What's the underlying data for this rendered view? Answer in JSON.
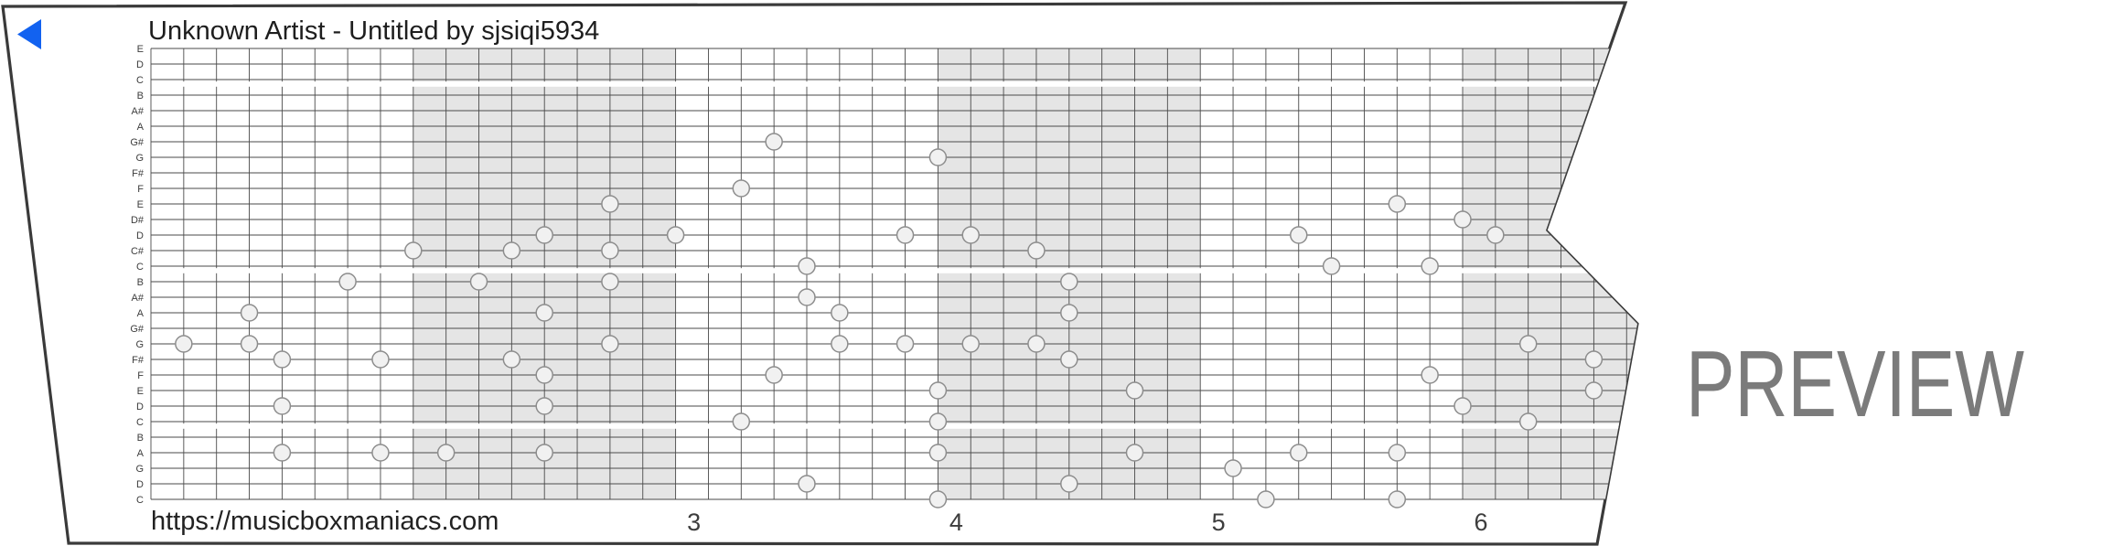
{
  "title": "Unknown Artist - Untitled by sjsiqi5934",
  "watermark": "PREVIEW",
  "footer": {
    "url": "https://musicboxmaniacs.com"
  },
  "play_button": {
    "color": "#1262f0"
  },
  "colors": {
    "strip_border": "#3a3a3a",
    "grid_line": "#4a4a4a",
    "measure_shading": "#e5e5e5",
    "octave_gap": "#ffffff",
    "note_fill": "#f1f1f1",
    "note_border": "#8d8d8d",
    "text": "#1e1e1e",
    "watermark": "#7b7b7b"
  },
  "strip": {
    "rows": 30,
    "note_labels": [
      "E",
      "D",
      "C",
      "B",
      "A#",
      "A",
      "G#",
      "G",
      "F#",
      "F",
      "E",
      "D#",
      "D",
      "C#",
      "C",
      "B",
      "A#",
      "A",
      "G#",
      "G",
      "F#",
      "F",
      "E",
      "D",
      "C",
      "B",
      "A",
      "G",
      "D",
      "C"
    ],
    "octave_gap_after_rows": [
      2,
      14,
      24
    ],
    "shaded_measures": [
      2,
      4,
      6
    ],
    "measure_numbers": [
      "3",
      "4",
      "5",
      "6"
    ],
    "notes": [
      {
        "col": 1,
        "row": 19,
        "pitch": "G"
      },
      {
        "col": 3,
        "row": 17,
        "pitch": "A"
      },
      {
        "col": 3,
        "row": 19,
        "pitch": "G"
      },
      {
        "col": 4,
        "row": 20,
        "pitch": "F#"
      },
      {
        "col": 4,
        "row": 23,
        "pitch": "D"
      },
      {
        "col": 4,
        "row": 26,
        "pitch": "A"
      },
      {
        "col": 6,
        "row": 15,
        "pitch": "B"
      },
      {
        "col": 7,
        "row": 20,
        "pitch": "F#"
      },
      {
        "col": 7,
        "row": 26,
        "pitch": "A"
      },
      {
        "col": 8,
        "row": 13,
        "pitch": "C#"
      },
      {
        "col": 9,
        "row": 26,
        "pitch": "A"
      },
      {
        "col": 10,
        "row": 15,
        "pitch": "B"
      },
      {
        "col": 11,
        "row": 13,
        "pitch": "C#"
      },
      {
        "col": 11,
        "row": 20,
        "pitch": "F#"
      },
      {
        "col": 12,
        "row": 12,
        "pitch": "D"
      },
      {
        "col": 12,
        "row": 17,
        "pitch": "A"
      },
      {
        "col": 12,
        "row": 21,
        "pitch": "F"
      },
      {
        "col": 12,
        "row": 23,
        "pitch": "D"
      },
      {
        "col": 12,
        "row": 26,
        "pitch": "A"
      },
      {
        "col": 14,
        "row": 10,
        "pitch": "E"
      },
      {
        "col": 14,
        "row": 13,
        "pitch": "C#"
      },
      {
        "col": 14,
        "row": 15,
        "pitch": "B"
      },
      {
        "col": 14,
        "row": 19,
        "pitch": "G"
      },
      {
        "col": 16,
        "row": 12,
        "pitch": "D"
      },
      {
        "col": 18,
        "row": 9,
        "pitch": "F"
      },
      {
        "col": 18,
        "row": 24,
        "pitch": "C"
      },
      {
        "col": 19,
        "row": 6,
        "pitch": "G#"
      },
      {
        "col": 19,
        "row": 21,
        "pitch": "F"
      },
      {
        "col": 20,
        "row": 14,
        "pitch": "C"
      },
      {
        "col": 20,
        "row": 16,
        "pitch": "A#"
      },
      {
        "col": 20,
        "row": 28,
        "pitch": "D"
      },
      {
        "col": 21,
        "row": 17,
        "pitch": "A"
      },
      {
        "col": 21,
        "row": 19,
        "pitch": "G"
      },
      {
        "col": 23,
        "row": 12,
        "pitch": "D"
      },
      {
        "col": 23,
        "row": 19,
        "pitch": "G"
      },
      {
        "col": 24,
        "row": 7,
        "pitch": "G"
      },
      {
        "col": 24,
        "row": 22,
        "pitch": "E"
      },
      {
        "col": 24,
        "row": 24,
        "pitch": "C"
      },
      {
        "col": 24,
        "row": 26,
        "pitch": "A"
      },
      {
        "col": 24,
        "row": 29,
        "pitch": "C"
      },
      {
        "col": 25,
        "row": 12,
        "pitch": "D"
      },
      {
        "col": 25,
        "row": 19,
        "pitch": "G"
      },
      {
        "col": 27,
        "row": 13,
        "pitch": "C#"
      },
      {
        "col": 27,
        "row": 19,
        "pitch": "G"
      },
      {
        "col": 28,
        "row": 15,
        "pitch": "B"
      },
      {
        "col": 28,
        "row": 17,
        "pitch": "A"
      },
      {
        "col": 28,
        "row": 20,
        "pitch": "F#"
      },
      {
        "col": 28,
        "row": 28,
        "pitch": "D"
      },
      {
        "col": 30,
        "row": 22,
        "pitch": "E"
      },
      {
        "col": 30,
        "row": 26,
        "pitch": "A"
      },
      {
        "col": 33,
        "row": 27,
        "pitch": "G"
      },
      {
        "col": 34,
        "row": 29,
        "pitch": "C"
      },
      {
        "col": 35,
        "row": 12,
        "pitch": "D"
      },
      {
        "col": 35,
        "row": 26,
        "pitch": "A"
      },
      {
        "col": 36,
        "row": 14,
        "pitch": "C"
      },
      {
        "col": 38,
        "row": 10,
        "pitch": "E"
      },
      {
        "col": 38,
        "row": 26,
        "pitch": "A"
      },
      {
        "col": 38,
        "row": 29,
        "pitch": "C"
      },
      {
        "col": 39,
        "row": 14,
        "pitch": "C"
      },
      {
        "col": 39,
        "row": 21,
        "pitch": "F"
      },
      {
        "col": 40,
        "row": 11,
        "pitch": "D#"
      },
      {
        "col": 40,
        "row": 23,
        "pitch": "D"
      },
      {
        "col": 41,
        "row": 12,
        "pitch": "D"
      },
      {
        "col": 42,
        "row": 19,
        "pitch": "G"
      },
      {
        "col": 42,
        "row": 24,
        "pitch": "C"
      },
      {
        "col": 44,
        "row": 20,
        "pitch": "F#"
      },
      {
        "col": 44,
        "row": 22,
        "pitch": "E"
      }
    ]
  }
}
